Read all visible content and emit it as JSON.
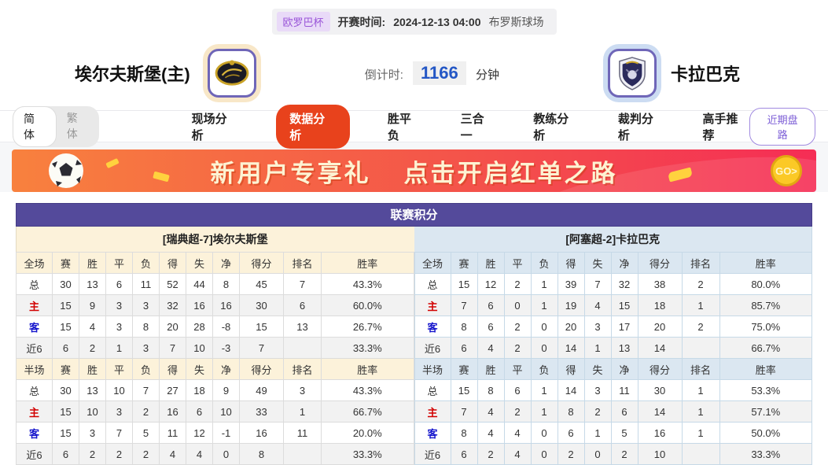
{
  "match_header": {
    "league_badge": "欧罗巴杯",
    "kickoff_label": "开赛时间:",
    "kickoff_time": "2024-12-13 04:00",
    "venue": "布罗斯球场",
    "home_team_name": "埃尔夫斯堡(主)",
    "away_team_name": "卡拉巴克",
    "countdown_label": "倒计时:",
    "countdown_value": "1166",
    "countdown_unit": "分钟"
  },
  "nav": {
    "lang_options": [
      "简体",
      "繁体"
    ],
    "active_lang": "简体",
    "tabs": [
      {
        "label": "现场分析",
        "active": false
      },
      {
        "label": "数据分析",
        "active": true
      },
      {
        "label": "胜平负",
        "active": false
      },
      {
        "label": "三合一",
        "active": false
      },
      {
        "label": "教练分析",
        "active": false
      },
      {
        "label": "裁判分析",
        "active": false
      },
      {
        "label": "高手推荐",
        "active": false
      }
    ],
    "recent_trend_button": "近期盘路"
  },
  "banner": {
    "headline_left": "新用户专享礼",
    "headline_right": "点击开启红单之路",
    "go_button": "GO>"
  },
  "league_table": {
    "title": "联赛积分",
    "home": {
      "band": "[瑞典超-7]埃尔夫斯堡",
      "sections": [
        {
          "scope": "全场",
          "columns": [
            "赛",
            "胜",
            "平",
            "负",
            "得",
            "失",
            "净",
            "得分",
            "排名",
            "胜率"
          ],
          "rows": [
            {
              "label": "总",
              "values": [
                "30",
                "13",
                "6",
                "11",
                "52",
                "44",
                "8",
                "45",
                "7",
                "43.3%"
              ]
            },
            {
              "label": "主",
              "values": [
                "15",
                "9",
                "3",
                "3",
                "32",
                "16",
                "16",
                "30",
                "6",
                "60.0%"
              ]
            },
            {
              "label": "客",
              "values": [
                "15",
                "4",
                "3",
                "8",
                "20",
                "28",
                "-8",
                "15",
                "13",
                "26.7%"
              ]
            },
            {
              "label": "近6",
              "values": [
                "6",
                "2",
                "1",
                "3",
                "7",
                "10",
                "-3",
                "7",
                "",
                "33.3%"
              ]
            }
          ]
        },
        {
          "scope": "半场",
          "columns": [
            "赛",
            "胜",
            "平",
            "负",
            "得",
            "失",
            "净",
            "得分",
            "排名",
            "胜率"
          ],
          "rows": [
            {
              "label": "总",
              "values": [
                "30",
                "13",
                "10",
                "7",
                "27",
                "18",
                "9",
                "49",
                "3",
                "43.3%"
              ]
            },
            {
              "label": "主",
              "values": [
                "15",
                "10",
                "3",
                "2",
                "16",
                "6",
                "10",
                "33",
                "1",
                "66.7%"
              ]
            },
            {
              "label": "客",
              "values": [
                "15",
                "3",
                "7",
                "5",
                "11",
                "12",
                "-1",
                "16",
                "11",
                "20.0%"
              ]
            },
            {
              "label": "近6",
              "values": [
                "6",
                "2",
                "2",
                "2",
                "4",
                "4",
                "0",
                "8",
                "",
                "33.3%"
              ]
            }
          ]
        }
      ]
    },
    "away": {
      "band": "[阿塞超-2]卡拉巴克",
      "sections": [
        {
          "scope": "全场",
          "columns": [
            "赛",
            "胜",
            "平",
            "负",
            "得",
            "失",
            "净",
            "得分",
            "排名",
            "胜率"
          ],
          "rows": [
            {
              "label": "总",
              "values": [
                "15",
                "12",
                "2",
                "1",
                "39",
                "7",
                "32",
                "38",
                "2",
                "80.0%"
              ]
            },
            {
              "label": "主",
              "values": [
                "7",
                "6",
                "0",
                "1",
                "19",
                "4",
                "15",
                "18",
                "1",
                "85.7%"
              ]
            },
            {
              "label": "客",
              "values": [
                "8",
                "6",
                "2",
                "0",
                "20",
                "3",
                "17",
                "20",
                "2",
                "75.0%"
              ]
            },
            {
              "label": "近6",
              "values": [
                "6",
                "4",
                "2",
                "0",
                "14",
                "1",
                "13",
                "14",
                "",
                "66.7%"
              ]
            }
          ]
        },
        {
          "scope": "半场",
          "columns": [
            "赛",
            "胜",
            "平",
            "负",
            "得",
            "失",
            "净",
            "得分",
            "排名",
            "胜率"
          ],
          "rows": [
            {
              "label": "总",
              "values": [
                "15",
                "8",
                "6",
                "1",
                "14",
                "3",
                "11",
                "30",
                "1",
                "53.3%"
              ]
            },
            {
              "label": "主",
              "values": [
                "7",
                "4",
                "2",
                "1",
                "8",
                "2",
                "6",
                "14",
                "1",
                "57.1%"
              ]
            },
            {
              "label": "客",
              "values": [
                "8",
                "4",
                "4",
                "0",
                "6",
                "1",
                "5",
                "16",
                "1",
                "50.0%"
              ]
            },
            {
              "label": "近6",
              "values": [
                "6",
                "2",
                "4",
                "0",
                "2",
                "0",
                "2",
                "10",
                "",
                "33.3%"
              ]
            }
          ]
        }
      ]
    }
  },
  "colors": {
    "accent_purple": "#544a9b",
    "active_tab_red": "#e8421c",
    "home_panel_cream": "#fcf2da",
    "away_panel_blue": "#dbe7f1",
    "home_row_red": "#d10000",
    "away_row_blue": "#1414cc",
    "countdown_blue": "#2457c5",
    "badge_purple_text": "#9a55d8"
  }
}
